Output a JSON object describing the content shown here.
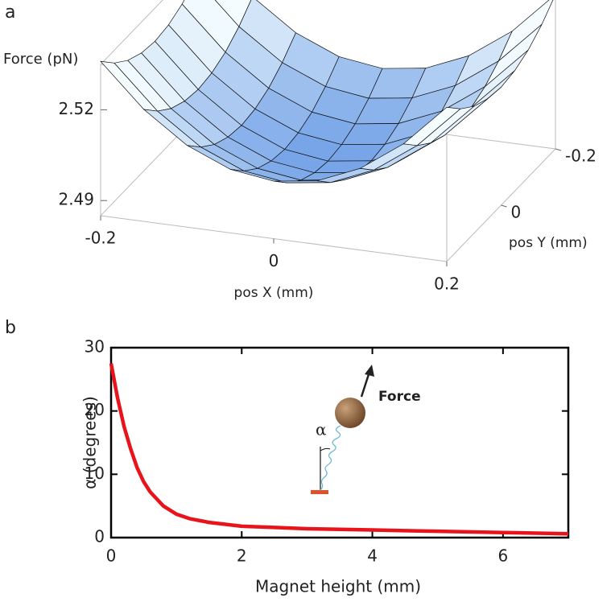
{
  "chart_data": [
    {
      "type": "surface",
      "panel_label": "a",
      "z_label": "Force (pN)",
      "x_label": "pos X (mm)",
      "y_label": "pos Y (mm)",
      "x": [
        -0.2,
        -0.15,
        -0.1,
        -0.05,
        0,
        0.05,
        0.1,
        0.15,
        0.2
      ],
      "y": [
        -0.2,
        -0.15,
        -0.1,
        -0.05,
        0,
        0.05,
        0.1,
        0.15,
        0.2
      ],
      "z": [
        [
          2.536,
          2.522,
          2.512,
          2.506,
          2.504,
          2.506,
          2.512,
          2.522,
          2.536
        ],
        [
          2.5308,
          2.5168,
          2.5068,
          2.5008,
          2.4988,
          2.5008,
          2.5068,
          2.5168,
          2.5308
        ],
        [
          2.527,
          2.513,
          2.503,
          2.497,
          2.495,
          2.497,
          2.503,
          2.513,
          2.527
        ],
        [
          2.5248,
          2.5108,
          2.5008,
          2.4948,
          2.4928,
          2.4948,
          2.5008,
          2.5108,
          2.5248
        ],
        [
          2.524,
          2.51,
          2.5,
          2.494,
          2.492,
          2.494,
          2.5,
          2.51,
          2.524
        ],
        [
          2.5248,
          2.5108,
          2.5008,
          2.4948,
          2.4928,
          2.4948,
          2.5008,
          2.5108,
          2.5248
        ],
        [
          2.527,
          2.513,
          2.503,
          2.497,
          2.495,
          2.497,
          2.503,
          2.513,
          2.527
        ],
        [
          2.5308,
          2.5168,
          2.5068,
          2.5008,
          2.4988,
          2.5008,
          2.5068,
          2.5168,
          2.5308
        ],
        [
          2.536,
          2.522,
          2.512,
          2.506,
          2.504,
          2.506,
          2.512,
          2.522,
          2.536
        ]
      ],
      "xlim": [
        -0.2,
        0.2
      ],
      "ylim": [
        -0.2,
        0.2
      ],
      "zlim": [
        2.485,
        2.535
      ],
      "xticks": [
        -0.2,
        0,
        0.2
      ],
      "yticks": [
        -0.2,
        0
      ],
      "zticks": [
        2.49,
        2.52
      ],
      "colormap": [
        "#6f9fe6",
        "#f4fcfe"
      ]
    },
    {
      "type": "line",
      "panel_label": "b",
      "x_label": "Magnet height (mm)",
      "y_label": "α (degrees)",
      "annotations": [
        "Force",
        "α"
      ],
      "x": [
        0,
        0.1,
        0.2,
        0.3,
        0.4,
        0.5,
        0.6,
        0.8,
        1.0,
        1.2,
        1.5,
        2,
        2.5,
        3,
        4,
        5,
        6,
        7
      ],
      "values": [
        27.5,
        22,
        17.5,
        14,
        11,
        8.8,
        7.2,
        5,
        3.7,
        3,
        2.4,
        1.8,
        1.6,
        1.4,
        1.2,
        1,
        0.8,
        0.6
      ],
      "color": "#e8141b",
      "xlim": [
        0,
        7
      ],
      "ylim": [
        0,
        30
      ],
      "xticks": [
        0,
        2,
        4,
        6
      ],
      "yticks": [
        0,
        10,
        20,
        30
      ]
    }
  ]
}
